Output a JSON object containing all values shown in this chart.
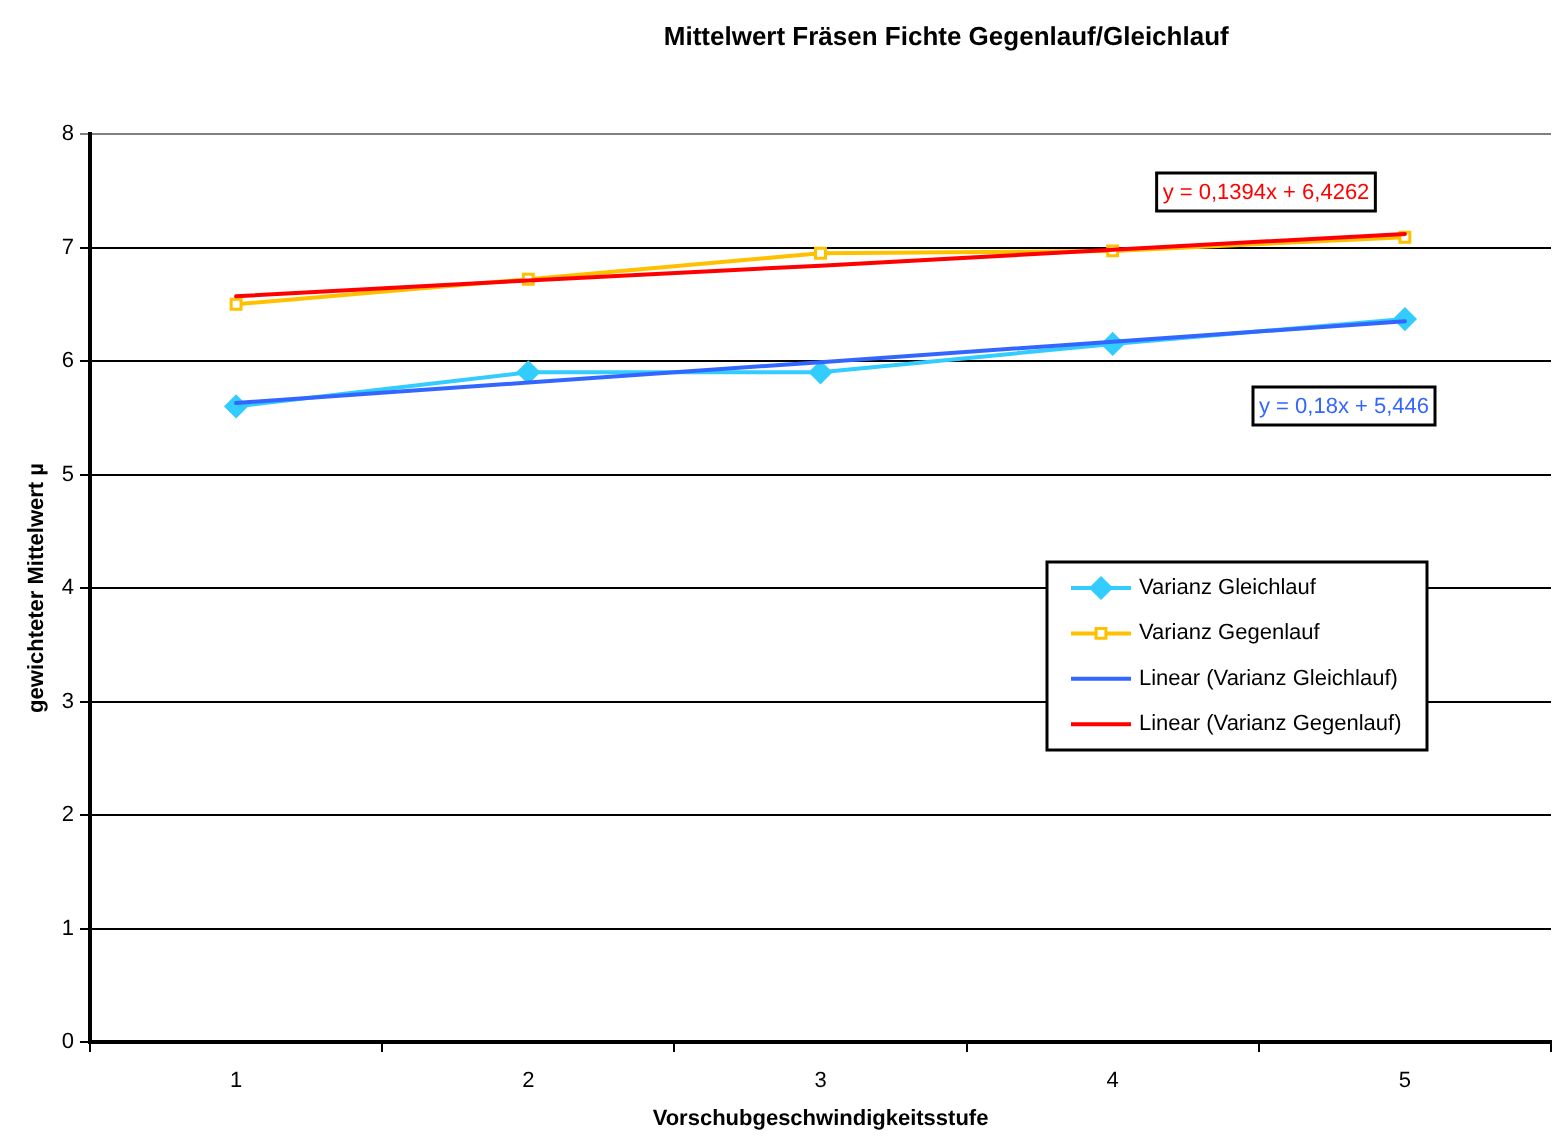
{
  "chart_data": {
    "type": "line",
    "title": "Mittelwert Fräsen Fichte Gegenlauf/Gleichlauf",
    "xlabel": "Vorschubgeschwindigkeitsstufe",
    "ylabel": "gewichteter Mittelwert µ",
    "categories": [
      "1",
      "2",
      "3",
      "4",
      "5"
    ],
    "series": [
      {
        "name": "Varianz Gleichlauf",
        "color": "#33ccff",
        "marker": "diamond",
        "values": [
          5.6,
          5.9,
          5.9,
          6.15,
          6.37
        ]
      },
      {
        "name": "Varianz Gegenlauf",
        "color": "#ffc000",
        "marker": "square",
        "values": [
          6.5,
          6.72,
          6.95,
          6.97,
          7.09
        ]
      },
      {
        "name": "Linear (Varianz Gleichlauf)",
        "color": "#3366ff",
        "marker": "none",
        "values": [
          5.63,
          5.81,
          5.99,
          6.17,
          6.35
        ]
      },
      {
        "name": "Linear (Varianz Gegenlauf)",
        "color": "#ff0000",
        "marker": "none",
        "values": [
          6.57,
          6.71,
          6.84,
          6.98,
          7.12
        ]
      }
    ],
    "ylim": [
      0,
      8
    ],
    "yticks": [
      0,
      1,
      2,
      3,
      4,
      5,
      6,
      7,
      8
    ],
    "grid": "y",
    "legend": "right",
    "line_style": "solid",
    "annotations": [
      "y = 0,18x + 5,446",
      "y = 0,1394x + 6,4262"
    ]
  }
}
